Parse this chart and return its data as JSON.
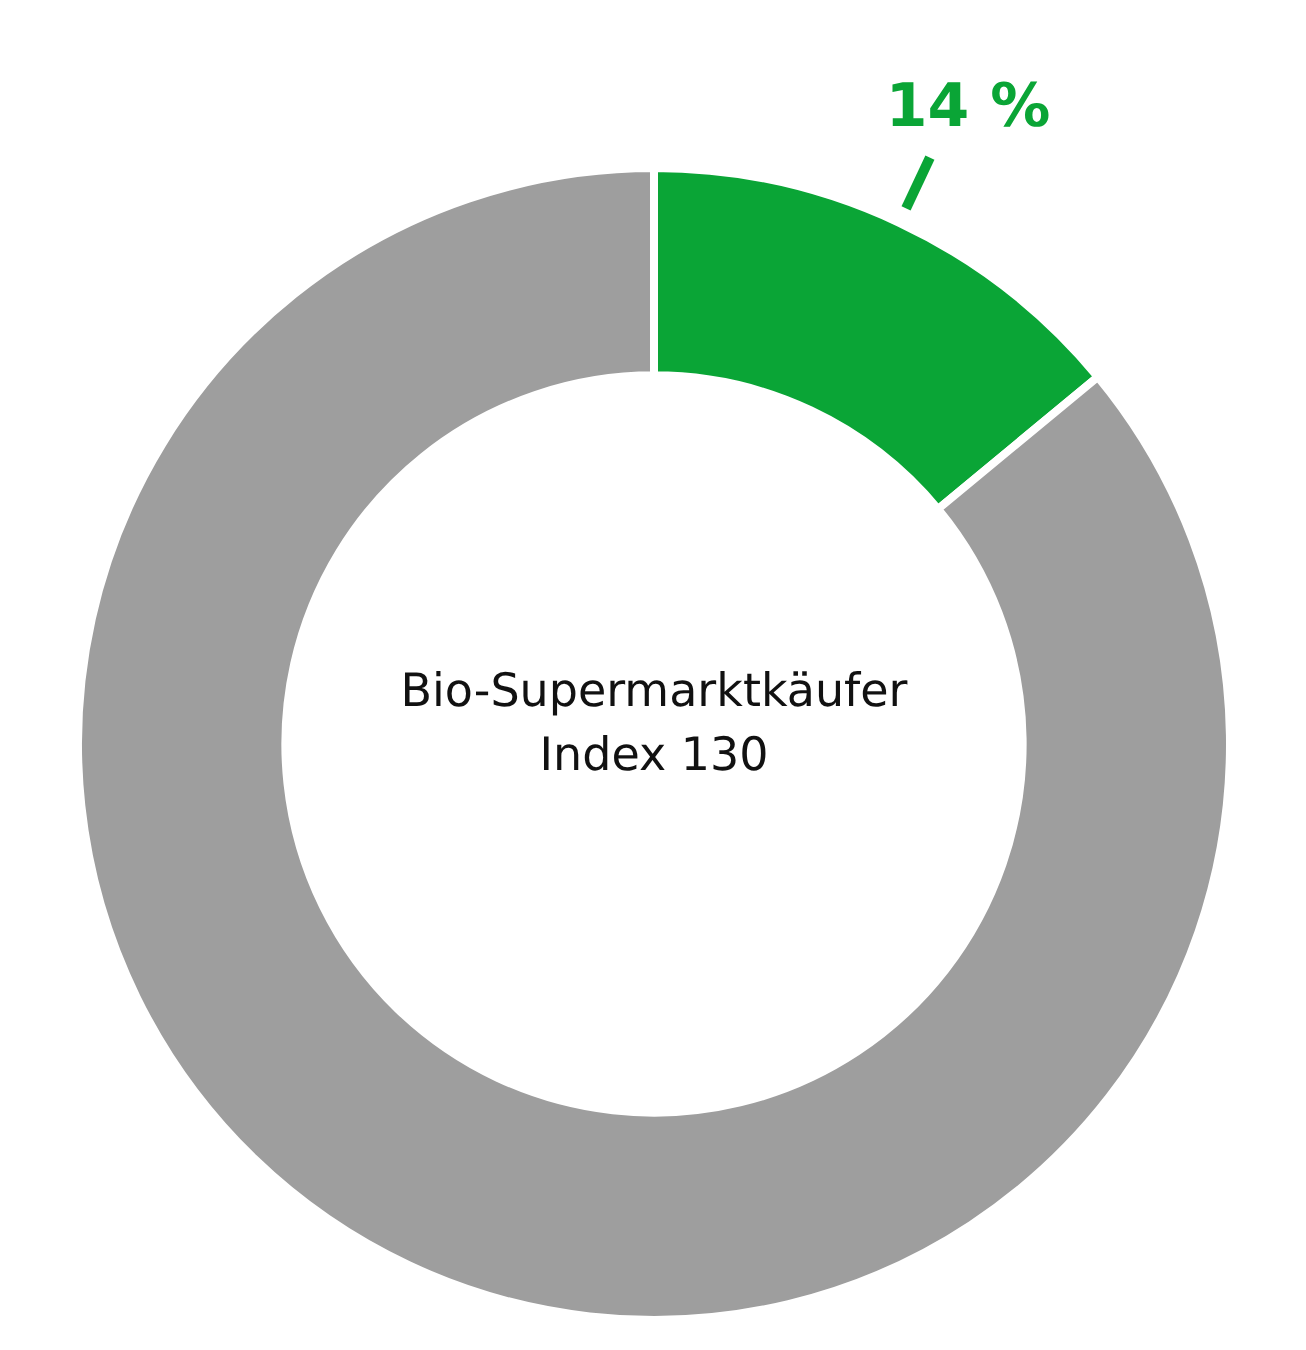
{
  "chart_data": {
    "type": "donut",
    "title": "Bio-Supermarktkäufer Index 130",
    "categories": [
      null,
      null
    ],
    "values": [
      14,
      86
    ],
    "colors": [
      "#0aa536",
      "#9e9e9e"
    ],
    "value_labels": [
      "14 %",
      null
    ],
    "legend": false
  }
}
